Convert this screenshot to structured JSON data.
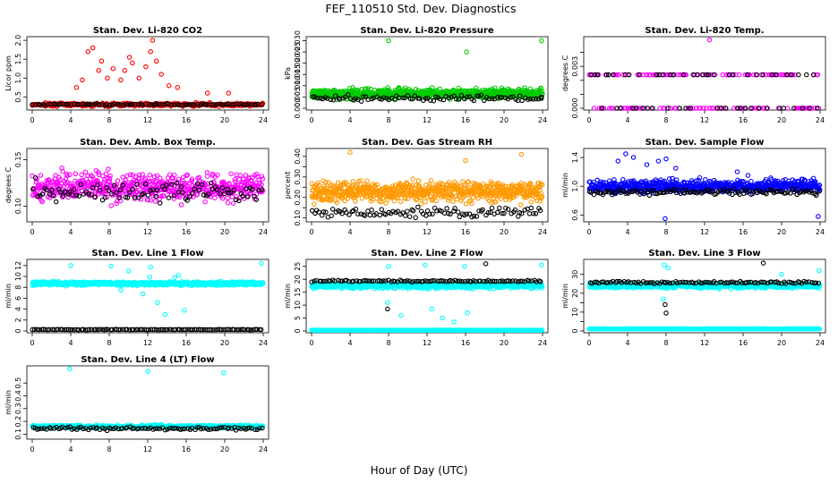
{
  "title": "FEF_110510  Std. Dev. Diagnostics",
  "xlabel": "Hour of Day (UTC)",
  "chart_data": [
    {
      "type": "scatter",
      "title": "Stan. Dev. Li-820 CO2",
      "ylabel": "Licor ppm",
      "xlim": [
        0,
        24
      ],
      "ylim": [
        0.2,
        2.05
      ],
      "xticks": [
        "0",
        "4",
        "8",
        "12",
        "16",
        "20",
        "24"
      ],
      "yticks": [
        0.5,
        1.0,
        1.5,
        2.0
      ],
      "ytick_labels": [
        "0.5",
        "1.0",
        "1.5",
        "2.0"
      ],
      "series": [
        {
          "color": "#ff0000",
          "base": 0.3,
          "spread": 0.05,
          "count": 280,
          "points": [
            [
              5.8,
              1.7
            ],
            [
              6.3,
              1.8
            ],
            [
              7.2,
              1.45
            ],
            [
              6.9,
              1.2
            ],
            [
              8.4,
              1.25
            ],
            [
              9.6,
              1.2
            ],
            [
              10.1,
              1.55
            ],
            [
              10.4,
              1.4
            ],
            [
              11.8,
              1.3
            ],
            [
              12.3,
              1.7
            ],
            [
              12.5,
              2.0
            ],
            [
              13.4,
              1.1
            ],
            [
              12.9,
              1.45
            ],
            [
              9.2,
              0.95
            ],
            [
              11.1,
              1.0
            ],
            [
              5.2,
              0.95
            ],
            [
              14.2,
              0.8
            ],
            [
              15.1,
              0.75
            ],
            [
              18.2,
              0.6
            ],
            [
              20.4,
              0.6
            ],
            [
              7.8,
              1.0
            ],
            [
              4.6,
              0.75
            ]
          ]
        },
        {
          "color": "#000000",
          "base": 0.3,
          "spread": 0.02,
          "count": 90,
          "points": []
        }
      ]
    },
    {
      "type": "scatter",
      "title": "Stan. Dev. Li-820 Pressure",
      "ylabel": "kPa",
      "xlim": [
        0,
        24
      ],
      "ylim": [
        0,
        0.031
      ],
      "xticks": [
        "0",
        "4",
        "8",
        "12",
        "16",
        "20",
        "24"
      ],
      "yticks": [
        0.0,
        0.005,
        0.01,
        0.015,
        0.02,
        0.025,
        0.03
      ],
      "ytick_labels": [
        "0.000",
        "0.005",
        "0.010",
        "0.015",
        "0.020",
        "0.025",
        "0.030"
      ],
      "series": [
        {
          "color": "#00cc00",
          "base": 0.0065,
          "spread": 0.0022,
          "count": 750,
          "points": [
            [
              8.0,
              0.03
            ],
            [
              16.1,
              0.025
            ],
            [
              23.9,
              0.03
            ]
          ]
        },
        {
          "color": "#000000",
          "base": 0.0045,
          "spread": 0.0015,
          "count": 90,
          "points": [
            [
              23.9,
              0.005
            ]
          ]
        }
      ]
    },
    {
      "type": "scatter",
      "title": "Stan. Dev. Li-820 Temp.",
      "ylabel": "degrees C",
      "xlim": [
        0,
        24
      ],
      "ylim": [
        0,
        0.005
      ],
      "xticks": [
        "0",
        "4",
        "8",
        "12",
        "16",
        "20",
        "24"
      ],
      "yticks": [
        0.0,
        0.001,
        0.002,
        0.003,
        0.004
      ],
      "ytick_labels": [
        "0.000",
        "",
        "",
        "0.003",
        ""
      ],
      "series": [
        {
          "color": "#ff00ff",
          "levels": [
            0,
            0.0024
          ],
          "count": 160,
          "points": [
            [
              12.5,
              0.0049
            ]
          ]
        },
        {
          "color": "#000000",
          "levels": [
            0,
            0.0024
          ],
          "count": 60,
          "points": []
        }
      ]
    },
    {
      "type": "scatter",
      "title": "Stan. Dev. Amb. Box Temp.",
      "ylabel": "degrees C",
      "xlim": [
        0,
        24
      ],
      "ylim": [
        0.085,
        0.16
      ],
      "xticks": [
        "0",
        "4",
        "8",
        "12",
        "16",
        "20",
        "24"
      ],
      "yticks": [
        0.1,
        0.15
      ],
      "ytick_labels": [
        "0.10",
        "0.15"
      ],
      "series": [
        {
          "color": "#ff00ff",
          "base": 0.12,
          "spread": 0.015,
          "count": 600,
          "points": []
        },
        {
          "color": "#000000",
          "base": 0.115,
          "spread": 0.012,
          "count": 100,
          "points": []
        }
      ]
    },
    {
      "type": "scatter",
      "title": "Stan. Dev. Gas Stream RH",
      "ylabel": "percent",
      "xlim": [
        0,
        24
      ],
      "ylim": [
        0.09,
        0.43
      ],
      "xticks": [
        "0",
        "4",
        "8",
        "12",
        "16",
        "20",
        "24"
      ],
      "yticks": [
        0.1,
        0.15,
        0.2,
        0.25,
        0.3,
        0.35,
        0.4
      ],
      "ytick_labels": [
        "0.10",
        "",
        "0.20",
        "",
        "0.30",
        "",
        "0.40"
      ],
      "series": [
        {
          "color": "#ff9900",
          "base": 0.23,
          "spread": 0.05,
          "count": 700,
          "points": [
            [
              4.0,
              0.42
            ],
            [
              21.8,
              0.41
            ],
            [
              16.0,
              0.38
            ]
          ]
        },
        {
          "color": "#000000",
          "base": 0.13,
          "spread": 0.03,
          "count": 100,
          "points": []
        }
      ]
    },
    {
      "type": "scatter",
      "title": "Stan. Dev. Sample Flow",
      "ylabel": "ml/min",
      "xlim": [
        0,
        24
      ],
      "ylim": [
        0.53,
        1.5
      ],
      "xticks": [
        "0",
        "4",
        "8",
        "12",
        "16",
        "20",
        "24"
      ],
      "yticks": [
        0.6,
        1.0,
        1.4
      ],
      "ytick_labels": [
        "0.6",
        "1.0",
        "1.4"
      ],
      "series": [
        {
          "color": "#0000ff",
          "base": 1.0,
          "spread": 0.09,
          "count": 650,
          "points": [
            [
              3.0,
              1.35
            ],
            [
              3.8,
              1.45
            ],
            [
              4.6,
              1.4
            ],
            [
              6.0,
              1.3
            ],
            [
              7.2,
              1.35
            ],
            [
              8.0,
              1.38
            ],
            [
              9.0,
              1.25
            ],
            [
              7.9,
              0.55
            ],
            [
              23.8,
              0.58
            ],
            [
              15.4,
              1.2
            ],
            [
              16.5,
              1.15
            ]
          ]
        },
        {
          "color": "#000000",
          "base": 0.92,
          "spread": 0.05,
          "count": 120,
          "points": []
        }
      ]
    },
    {
      "type": "scatter",
      "title": "Stan. Dev. Line 1 Flow",
      "ylabel": "ml/min",
      "xlim": [
        0,
        24
      ],
      "ylim": [
        0,
        12.8
      ],
      "xticks": [
        "0",
        "4",
        "8",
        "12",
        "16",
        "20",
        "24"
      ],
      "yticks": [
        0,
        2,
        4,
        6,
        8,
        10,
        12
      ],
      "ytick_labels": [
        "0",
        "2",
        "4",
        "6",
        "8",
        "10",
        "12"
      ],
      "series": [
        {
          "color": "#00ffff",
          "base": 8.7,
          "spread": 0.35,
          "count": 650,
          "points": [
            [
              4.0,
              12.0
            ],
            [
              8.2,
              11.9
            ],
            [
              10.0,
              11.0
            ],
            [
              12.3,
              11.7
            ],
            [
              13.0,
              5.2
            ],
            [
              13.8,
              3.0
            ],
            [
              14.8,
              9.8
            ],
            [
              15.2,
              10.2
            ],
            [
              23.8,
              12.4
            ],
            [
              9.2,
              7.5
            ],
            [
              11.5,
              6.8
            ],
            [
              15.8,
              3.8
            ],
            [
              12.2,
              9.9
            ]
          ]
        },
        {
          "color": "#000000",
          "base": 0.25,
          "spread": 0.05,
          "count": 110,
          "points": []
        }
      ]
    },
    {
      "type": "scatter",
      "title": "Stan. Dev. Line 2 Flow",
      "ylabel": "ml/min",
      "xlim": [
        0,
        24
      ],
      "ylim": [
        0,
        27
      ],
      "xticks": [
        "0",
        "4",
        "8",
        "12",
        "16",
        "20",
        "24"
      ],
      "yticks": [
        0,
        5,
        10,
        15,
        20,
        25
      ],
      "ytick_labels": [
        "0",
        "5",
        "10",
        "15",
        "20",
        "25"
      ],
      "series": [
        {
          "color": "#00ffff",
          "base": 17.5,
          "spread": 1.1,
          "count": 600,
          "points": [
            [
              8.0,
              25.0
            ],
            [
              11.8,
              25.5
            ],
            [
              15.9,
              25.0
            ],
            [
              23.9,
              25.5
            ],
            [
              9.3,
              6.0
            ],
            [
              13.6,
              5.0
            ],
            [
              14.8,
              3.5
            ],
            [
              12.5,
              8.5
            ],
            [
              16.2,
              7.0
            ],
            [
              7.9,
              11.0
            ]
          ]
        },
        {
          "color": "#000000",
          "base": 19.3,
          "spread": 0.4,
          "count": 100,
          "points": [
            [
              7.9,
              8.5
            ],
            [
              18.1,
              26.0
            ]
          ]
        },
        {
          "color": "#00ffff",
          "base": 0.3,
          "spread": 0.05,
          "count": 400,
          "points": []
        }
      ]
    },
    {
      "type": "scatter",
      "title": "Stan. Dev. Line 3 Flow",
      "ylabel": "ml/min",
      "xlim": [
        0,
        24
      ],
      "ylim": [
        0,
        37
      ],
      "xticks": [
        "0",
        "4",
        "8",
        "12",
        "16",
        "20",
        "24"
      ],
      "yticks": [
        0,
        5,
        10,
        15,
        20,
        25,
        30
      ],
      "ytick_labels": [
        "0",
        "",
        "10",
        "",
        "20",
        "",
        "30"
      ],
      "series": [
        {
          "color": "#00ffff",
          "base": 24.0,
          "spread": 1.4,
          "count": 600,
          "points": [
            [
              7.8,
              35.0
            ],
            [
              8.2,
              33.5
            ],
            [
              23.9,
              32.0
            ],
            [
              7.7,
              17.0
            ],
            [
              20.0,
              30.0
            ]
          ]
        },
        {
          "color": "#000000",
          "base": 25.7,
          "spread": 0.7,
          "count": 100,
          "points": [
            [
              7.9,
              14.0
            ],
            [
              8.0,
              9.5
            ],
            [
              18.1,
              36.0
            ]
          ]
        },
        {
          "color": "#00ffff",
          "base": 1.1,
          "spread": 0.1,
          "count": 400,
          "points": []
        }
      ]
    },
    {
      "type": "scatter",
      "title": "Stan. Dev. Line 4 (LT) Flow",
      "ylabel": "ml/min",
      "xlim": [
        0,
        24
      ],
      "ylim": [
        0.075,
        0.62
      ],
      "xticks": [
        "0",
        "4",
        "8",
        "12",
        "16",
        "20",
        "24"
      ],
      "yticks": [
        0.1,
        0.2,
        0.3,
        0.4,
        0.5
      ],
      "ytick_labels": [
        "0.1",
        "0.2",
        "0.3",
        "0.4",
        "0.5"
      ],
      "series": [
        {
          "color": "#00ffff",
          "base": 0.16,
          "spread": 0.012,
          "count": 420,
          "points": [
            [
              3.9,
              0.61
            ],
            [
              12.0,
              0.59
            ],
            [
              19.9,
              0.58
            ]
          ]
        },
        {
          "color": "#000000",
          "base": 0.145,
          "spread": 0.012,
          "count": 100,
          "points": []
        }
      ]
    }
  ]
}
